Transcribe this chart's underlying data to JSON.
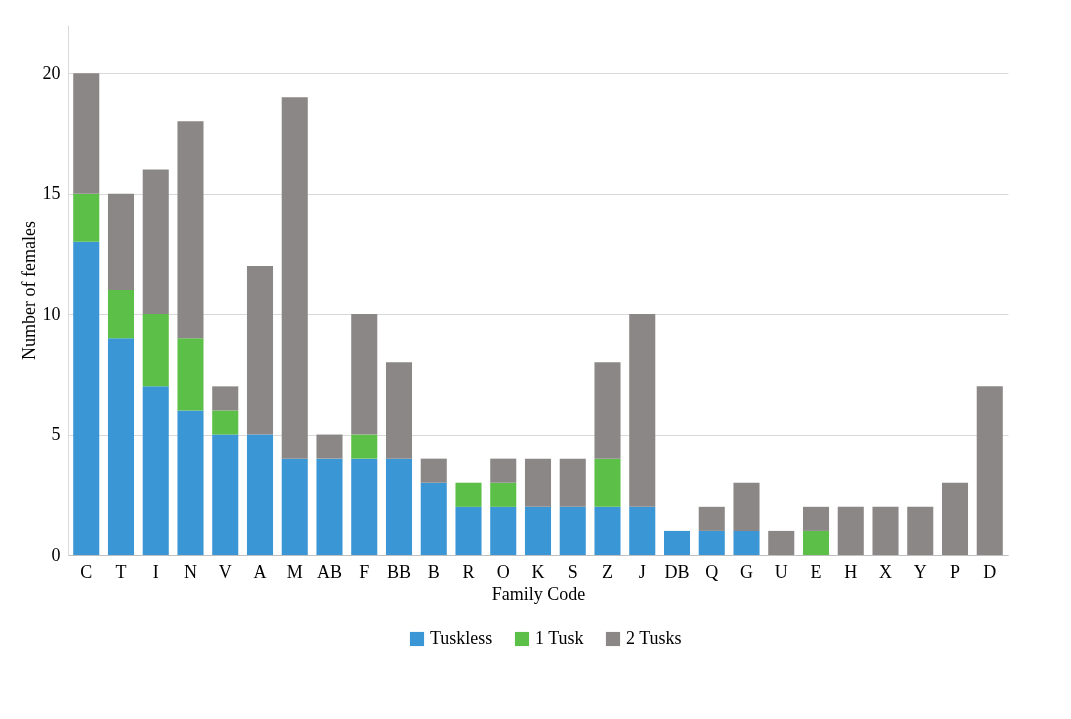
{
  "chart_data": {
    "type": "bar",
    "stacked": true,
    "xlabel": "Family Code",
    "ylabel": "Number of females",
    "categories": [
      "C",
      "T",
      "I",
      "N",
      "V",
      "A",
      "M",
      "AB",
      "F",
      "BB",
      "B",
      "R",
      "O",
      "K",
      "S",
      "Z",
      "J",
      "DB",
      "Q",
      "G",
      "U",
      "E",
      "H",
      "X",
      "Y",
      "P",
      "D"
    ],
    "series": [
      {
        "name": "Tuskless",
        "color": "#3a96d4",
        "values": [
          13,
          9,
          7,
          6,
          5,
          5,
          4,
          4,
          4,
          4,
          3,
          2,
          2,
          2,
          2,
          2,
          2,
          1,
          1,
          1,
          0,
          0,
          0,
          0,
          0,
          0,
          0
        ]
      },
      {
        "name": "1 Tusk",
        "color": "#5cbf47",
        "values": [
          2,
          2,
          3,
          3,
          1,
          0,
          0,
          0,
          1,
          0,
          0,
          1,
          1,
          0,
          0,
          2,
          0,
          0,
          0,
          0,
          0,
          1,
          0,
          0,
          0,
          0,
          0
        ]
      },
      {
        "name": "2 Tusks",
        "color": "#8c8787",
        "values": [
          5,
          4,
          6,
          9,
          1,
          7,
          15,
          1,
          5,
          4,
          1,
          0,
          1,
          2,
          2,
          4,
          8,
          0,
          1,
          2,
          1,
          1,
          2,
          2,
          2,
          3,
          7
        ]
      }
    ],
    "ylim": [
      0,
      22
    ],
    "yticks": [
      0,
      5,
      10,
      15,
      20
    ],
    "grid": "y",
    "legend": "bottom"
  }
}
